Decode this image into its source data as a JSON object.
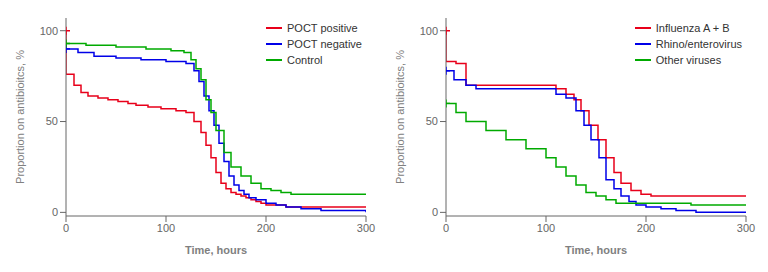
{
  "chart_data": [
    {
      "type": "line",
      "line_style": "step",
      "xlabel": "Time, hours",
      "ylabel": "Proportion on antibioitcs, %",
      "xlim": [
        0,
        300
      ],
      "ylim": [
        -2,
        107
      ],
      "xticks": [
        0,
        100,
        200,
        300
      ],
      "yticks": [
        0,
        50,
        100
      ],
      "legend": "upper right",
      "series": [
        {
          "name": "POCT positive",
          "color": "#e8001a",
          "marker": "plus",
          "x": [
            0,
            0,
            8,
            15,
            22,
            32,
            42,
            52,
            62,
            70,
            82,
            95,
            110,
            120,
            128,
            135,
            140,
            145,
            150,
            155,
            160,
            165,
            170,
            175,
            180,
            185,
            190,
            195,
            200,
            210,
            220,
            230,
            240,
            260,
            280,
            300
          ],
          "values": [
            100,
            76,
            70,
            66,
            64,
            63,
            62,
            61,
            60,
            59,
            58,
            57,
            56,
            55,
            50,
            44,
            37,
            30,
            22,
            16,
            13,
            11,
            10,
            9,
            8,
            7,
            6,
            5,
            4,
            4,
            3,
            3,
            3,
            3,
            3,
            3
          ]
        },
        {
          "name": "POCT negative",
          "color": "#0000e8",
          "marker": "plus",
          "x": [
            0,
            12,
            28,
            50,
            75,
            100,
            120,
            128,
            133,
            138,
            143,
            148,
            153,
            158,
            163,
            168,
            173,
            178,
            183,
            190,
            200,
            210,
            220,
            235,
            255,
            275,
            300
          ],
          "values": [
            90,
            88,
            86,
            85,
            84,
            83,
            82,
            78,
            72,
            64,
            56,
            48,
            38,
            28,
            20,
            15,
            12,
            10,
            8,
            7,
            5,
            4,
            3,
            2,
            1,
            1,
            0
          ]
        },
        {
          "name": "Control",
          "color": "#00aa00",
          "marker": "plus",
          "x": [
            0,
            20,
            50,
            80,
            105,
            118,
            125,
            130,
            135,
            140,
            145,
            150,
            158,
            165,
            175,
            185,
            195,
            205,
            215,
            225,
            240,
            260,
            280,
            300
          ],
          "values": [
            93,
            92,
            91,
            90,
            89,
            88,
            84,
            79,
            73,
            62,
            55,
            45,
            33,
            25,
            20,
            16,
            13,
            12,
            11,
            10,
            10,
            10,
            10,
            10
          ]
        }
      ]
    },
    {
      "type": "line",
      "line_style": "step",
      "xlabel": "Time, hours",
      "ylabel": "Proportion on antibioitcs, %",
      "xlim": [
        0,
        300
      ],
      "ylim": [
        -2,
        107
      ],
      "xticks": [
        0,
        100,
        200,
        300
      ],
      "yticks": [
        0,
        50,
        100
      ],
      "legend": "upper right",
      "series": [
        {
          "name": "Influenza A + B",
          "color": "#e8001a",
          "marker": "plus",
          "x": [
            0,
            0,
            10,
            20,
            100,
            110,
            120,
            128,
            135,
            143,
            152,
            160,
            168,
            175,
            185,
            195,
            205,
            215,
            260,
            280,
            300
          ],
          "values": [
            100,
            83,
            82,
            70,
            70,
            68,
            65,
            62,
            56,
            48,
            40,
            30,
            22,
            16,
            12,
            10,
            9,
            9,
            9,
            9,
            9
          ]
        },
        {
          "name": "Rhino/enterovirus",
          "color": "#0000e8",
          "marker": "plus",
          "x": [
            0,
            8,
            20,
            30,
            100,
            110,
            120,
            130,
            138,
            145,
            153,
            160,
            168,
            175,
            183,
            190,
            200,
            215,
            230,
            250,
            270,
            300
          ],
          "values": [
            78,
            73,
            70,
            68,
            68,
            65,
            63,
            56,
            48,
            40,
            30,
            18,
            13,
            9,
            6,
            4,
            3,
            2,
            1,
            0,
            0,
            0
          ]
        },
        {
          "name": "Other viruses",
          "color": "#00aa00",
          "marker": "plus",
          "x": [
            0,
            10,
            20,
            40,
            60,
            80,
            100,
            110,
            120,
            130,
            140,
            150,
            160,
            170,
            180,
            190,
            200,
            220,
            245,
            270,
            300
          ],
          "values": [
            60,
            55,
            50,
            45,
            40,
            35,
            30,
            25,
            20,
            15,
            11,
            9,
            7,
            5,
            5,
            5,
            5,
            5,
            4,
            4,
            4
          ]
        }
      ]
    }
  ]
}
